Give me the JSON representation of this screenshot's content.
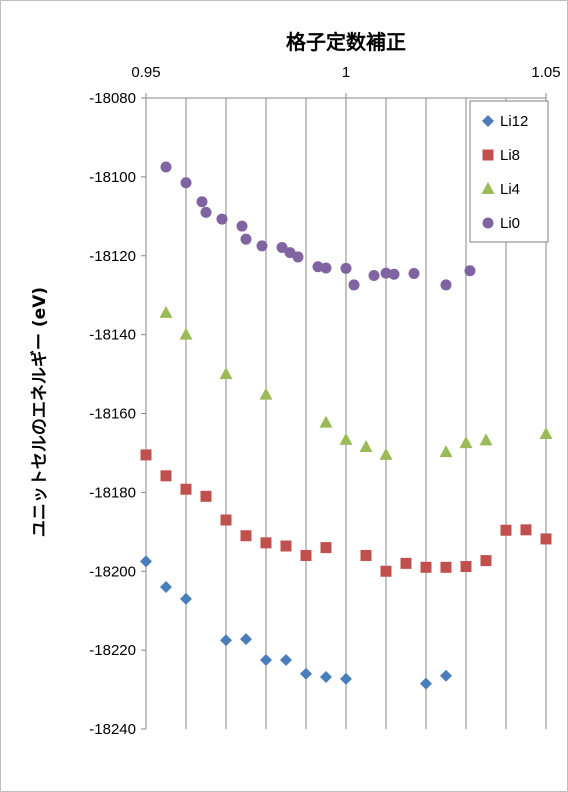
{
  "chart_data": {
    "type": "scatter",
    "title": "格子定数補正",
    "xlabel": "",
    "ylabel": "ユニットセルのエネルギー (eV)",
    "xlim": [
      0.95,
      1.05
    ],
    "ylim": [
      -18240,
      -18080
    ],
    "x_ticks": [
      "0.95",
      "1",
      "1.05"
    ],
    "y_ticks": [
      "-18080",
      "-18100",
      "-18120",
      "-18140",
      "-18160",
      "-18180",
      "-18200",
      "-18220",
      "-18240"
    ],
    "x_axis_position": "top",
    "vertical_gridlines_step": 0.01,
    "grid": true,
    "legend_position": "top-right",
    "series": [
      {
        "name": "Li12",
        "color": "#4a7ebb",
        "marker": "diamond",
        "points": [
          [
            0.95,
            -18197.5
          ],
          [
            0.955,
            -18204
          ],
          [
            0.96,
            -18207
          ],
          [
            0.97,
            -18217.5
          ],
          [
            0.975,
            -18217.2
          ],
          [
            0.98,
            -18222.5
          ],
          [
            0.985,
            -18222.5
          ],
          [
            0.99,
            -18226
          ],
          [
            0.995,
            -18226.8
          ],
          [
            1.0,
            -18227.3
          ],
          [
            1.02,
            -18228.5
          ],
          [
            1.025,
            -18226.5
          ]
        ]
      },
      {
        "name": "Li8",
        "color": "#c0504d",
        "marker": "square",
        "points": [
          [
            0.95,
            -18170.5
          ],
          [
            0.955,
            -18175.8
          ],
          [
            0.96,
            -18179.2
          ],
          [
            0.965,
            -18181
          ],
          [
            0.97,
            -18187
          ],
          [
            0.975,
            -18191
          ],
          [
            0.98,
            -18192.8
          ],
          [
            0.985,
            -18193.6
          ],
          [
            0.99,
            -18196
          ],
          [
            0.995,
            -18194
          ],
          [
            1.005,
            -18196
          ],
          [
            1.01,
            -18200
          ],
          [
            1.015,
            -18198
          ],
          [
            1.02,
            -18199
          ],
          [
            1.025,
            -18199
          ],
          [
            1.03,
            -18198.8
          ],
          [
            1.035,
            -18197.3
          ],
          [
            1.04,
            -18189.6
          ],
          [
            1.045,
            -18189.5
          ],
          [
            1.05,
            -18191.8
          ]
        ]
      },
      {
        "name": "Li4",
        "color": "#9bbb59",
        "marker": "triangle",
        "points": [
          [
            0.955,
            -18134.5
          ],
          [
            0.96,
            -18140
          ],
          [
            0.97,
            -18150
          ],
          [
            0.98,
            -18155.2
          ],
          [
            0.995,
            -18162.3
          ],
          [
            1.0,
            -18166.7
          ],
          [
            1.005,
            -18168.5
          ],
          [
            1.01,
            -18170.5
          ],
          [
            1.025,
            -18169.8
          ],
          [
            1.03,
            -18167.5
          ],
          [
            1.035,
            -18166.8
          ],
          [
            1.05,
            -18165.2
          ]
        ]
      },
      {
        "name": "Li0",
        "color": "#8064a2",
        "marker": "circle",
        "points": [
          [
            0.955,
            -18097.5
          ],
          [
            0.96,
            -18101.5
          ],
          [
            0.964,
            -18106.3
          ],
          [
            0.965,
            -18109
          ],
          [
            0.969,
            -18110.7
          ],
          [
            0.974,
            -18112.5
          ],
          [
            0.975,
            -18115.8
          ],
          [
            0.979,
            -18117.5
          ],
          [
            0.984,
            -18117.9
          ],
          [
            0.986,
            -18119.2
          ],
          [
            0.988,
            -18120.3
          ],
          [
            0.993,
            -18122.8
          ],
          [
            0.995,
            -18123.1
          ],
          [
            1.0,
            -18123.2
          ],
          [
            1.002,
            -18127.4
          ],
          [
            1.007,
            -18125
          ],
          [
            1.01,
            -18124.4
          ],
          [
            1.012,
            -18124.7
          ],
          [
            1.017,
            -18124.5
          ],
          [
            1.025,
            -18127.4
          ],
          [
            1.031,
            -18123.8
          ]
        ]
      }
    ]
  }
}
